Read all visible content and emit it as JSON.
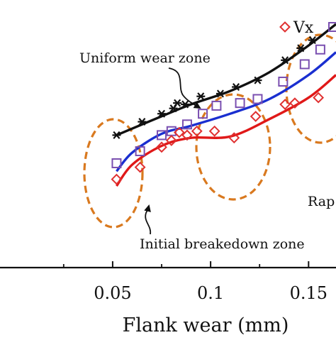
{
  "chart_data": {
    "type": "scatter",
    "title": "",
    "xlabel": "Flank wear (mm)",
    "ylabel": "",
    "xlim": [
      -0.0075,
      0.164
    ],
    "ylim": [
      0,
      10
    ],
    "x_ticks": [
      {
        "value": 0.05,
        "label": "0.05"
      },
      {
        "value": 0.1,
        "label": "0.1"
      },
      {
        "value": 0.15,
        "label": "0.15"
      }
    ],
    "grid": false,
    "legend": {
      "placement": "top-right",
      "entries": [
        {
          "label": "Vx",
          "marker": "diamond",
          "color": "#e03030"
        },
        {
          "label": "",
          "marker": "square",
          "color": "#7a4fb0"
        }
      ]
    },
    "series": [
      {
        "marker": "asterisk",
        "color": "#111111",
        "points": [
          [
            0.052,
            4.95
          ],
          [
            0.065,
            5.45
          ],
          [
            0.075,
            5.75
          ],
          [
            0.081,
            5.95
          ],
          [
            0.083,
            6.15
          ],
          [
            0.087,
            6.1
          ],
          [
            0.095,
            6.4
          ],
          [
            0.105,
            6.5
          ],
          [
            0.113,
            6.75
          ],
          [
            0.124,
            7.0
          ],
          [
            0.138,
            7.75
          ],
          [
            0.146,
            8.2
          ],
          [
            0.152,
            8.5
          ]
        ],
        "fit": [
          [
            0.052,
            4.95
          ],
          [
            0.07,
            5.5
          ],
          [
            0.09,
            6.1
          ],
          [
            0.11,
            6.6
          ],
          [
            0.13,
            7.3
          ],
          [
            0.15,
            8.3
          ],
          [
            0.164,
            9.1
          ]
        ]
      },
      {
        "marker": "square",
        "color": "#7a4fb0",
        "points": [
          [
            0.052,
            3.9
          ],
          [
            0.064,
            4.35
          ],
          [
            0.075,
            4.95
          ],
          [
            0.08,
            5.1
          ],
          [
            0.088,
            5.35
          ],
          [
            0.096,
            5.75
          ],
          [
            0.103,
            6.05
          ],
          [
            0.115,
            6.15
          ],
          [
            0.124,
            6.3
          ],
          [
            0.137,
            6.95
          ],
          [
            0.148,
            7.6
          ],
          [
            0.156,
            8.15
          ]
        ],
        "fit": [
          [
            0.052,
            3.6
          ],
          [
            0.06,
            4.3
          ],
          [
            0.075,
            5.0
          ],
          [
            0.09,
            5.3
          ],
          [
            0.11,
            5.75
          ],
          [
            0.13,
            6.3
          ],
          [
            0.15,
            7.2
          ],
          [
            0.164,
            8.05
          ]
        ]
      },
      {
        "marker": "diamond",
        "color": "#e03030",
        "points": [
          [
            0.052,
            3.3
          ],
          [
            0.064,
            3.75
          ],
          [
            0.075,
            4.5
          ],
          [
            0.08,
            4.75
          ],
          [
            0.084,
            5.05
          ],
          [
            0.088,
            4.95
          ],
          [
            0.093,
            5.1
          ],
          [
            0.102,
            5.1
          ],
          [
            0.112,
            4.85
          ],
          [
            0.123,
            5.65
          ],
          [
            0.138,
            6.1
          ],
          [
            0.143,
            6.15
          ],
          [
            0.155,
            6.35
          ]
        ],
        "fit": [
          [
            0.052,
            3.05
          ],
          [
            0.06,
            3.85
          ],
          [
            0.075,
            4.55
          ],
          [
            0.09,
            4.85
          ],
          [
            0.11,
            4.9
          ],
          [
            0.13,
            5.55
          ],
          [
            0.15,
            6.35
          ],
          [
            0.164,
            7.2
          ]
        ]
      }
    ],
    "annotations": [
      {
        "text": "Uniform wear zone"
      },
      {
        "text": "Initial breakedown zone"
      },
      {
        "text": "Rap"
      }
    ]
  }
}
